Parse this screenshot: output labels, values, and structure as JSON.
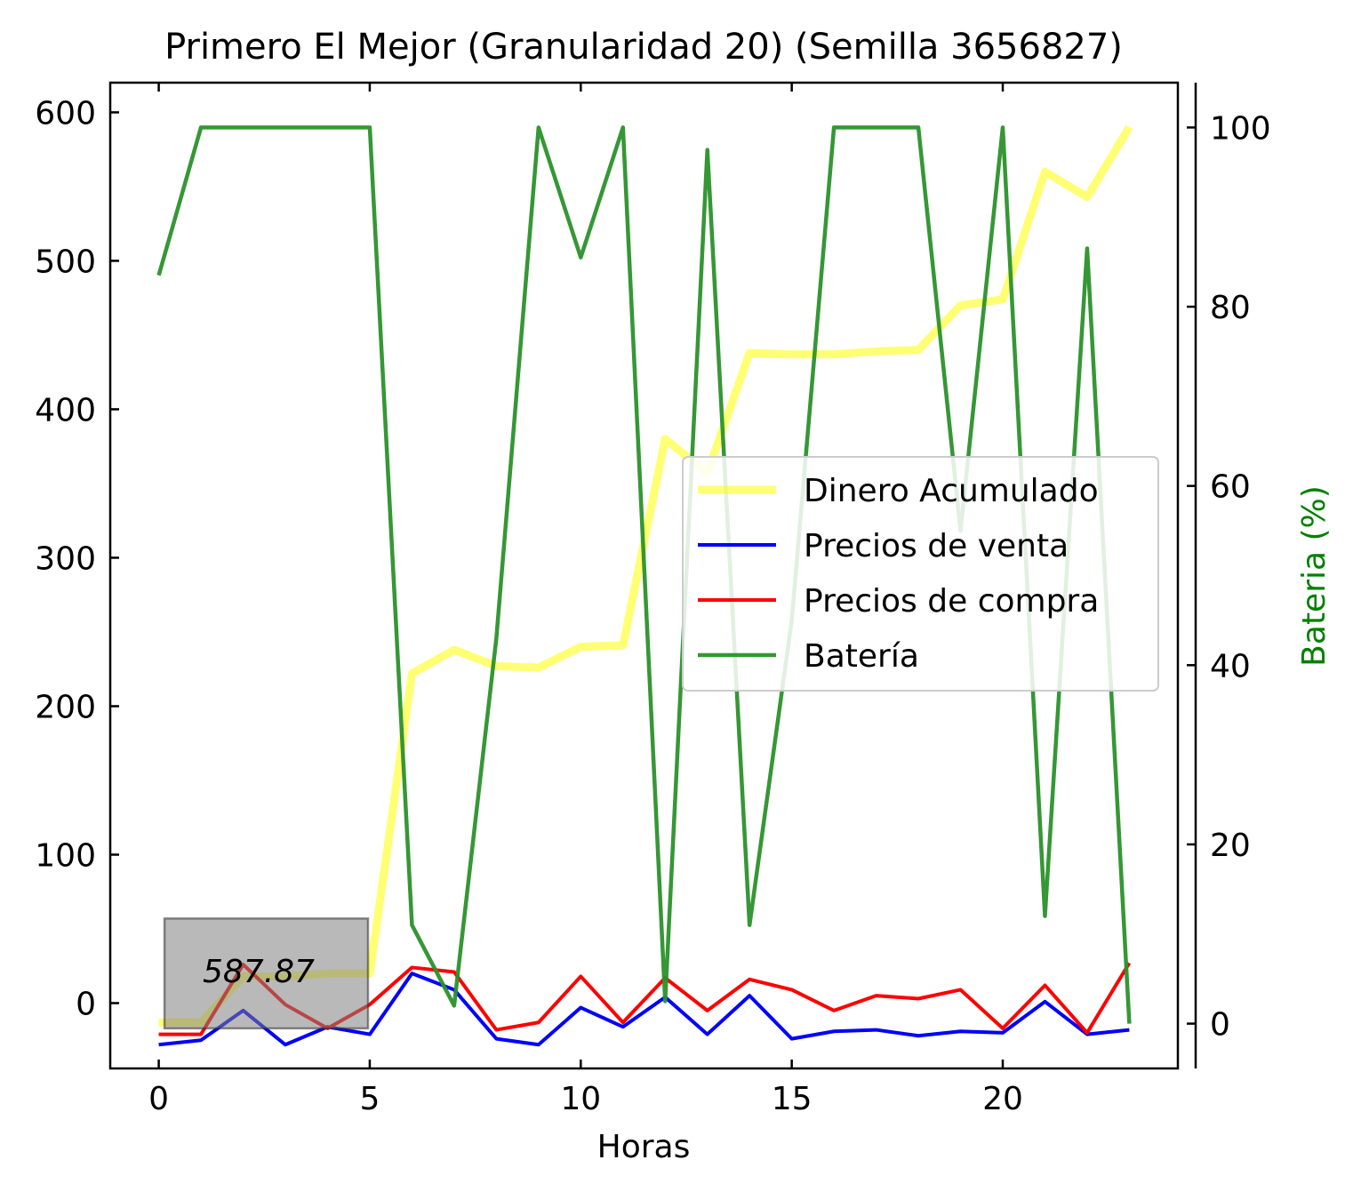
{
  "chart_data": {
    "type": "line",
    "title": "Primero El Mejor (Granularidad 20) (Semilla 3656827)",
    "xlabel": "Horas",
    "ylabel": "",
    "y2label": "Bateria (%)",
    "xlim": [
      -1.15,
      24.15
    ],
    "ylim": [
      -44,
      620
    ],
    "y2lim": [
      -5,
      105
    ],
    "xticks": [
      0,
      5,
      10,
      15,
      20
    ],
    "yticks": [
      0,
      100,
      200,
      300,
      400,
      500,
      600
    ],
    "y2ticks": [
      0,
      20,
      40,
      60,
      80,
      100
    ],
    "legend_position": "center-right",
    "annotation": "587.87",
    "x": [
      0,
      1,
      2,
      3,
      4,
      5,
      6,
      7,
      8,
      9,
      10,
      11,
      12,
      13,
      14,
      15,
      16,
      17,
      18,
      19,
      20,
      21,
      22,
      23
    ],
    "series": [
      {
        "name": "Dinero Acumulado",
        "color": "#ffff00",
        "axis": "left",
        "values": [
          -13,
          -13,
          18,
          18,
          20,
          20,
          222,
          238,
          227,
          226,
          240,
          241,
          380,
          357,
          438,
          437,
          437,
          439,
          440,
          470,
          474,
          560,
          543,
          590
        ]
      },
      {
        "name": "Precios de venta",
        "color": "#0000ff",
        "axis": "left",
        "values": [
          -28,
          -25,
          -5,
          -28,
          -16,
          -21,
          20,
          9,
          -24,
          -28,
          -3,
          -16,
          4,
          -21,
          5,
          -24,
          -19,
          -18,
          -22,
          -19,
          -20,
          1,
          -21,
          -18
        ]
      },
      {
        "name": "Precios de compra",
        "color": "#ff0000",
        "axis": "left",
        "values": [
          -21,
          -21,
          26,
          -1,
          -17,
          -1,
          24,
          21,
          -18,
          -13,
          18,
          -13,
          17,
          -5,
          16,
          9,
          -5,
          5,
          3,
          9,
          -17,
          12,
          -20,
          27
        ]
      },
      {
        "name": "Batería",
        "color": "#2a912a",
        "axis": "right",
        "values": [
          83.5,
          100,
          100,
          100,
          100,
          100,
          11,
          2,
          43,
          100,
          85.5,
          100,
          2.5,
          97.5,
          11,
          45,
          100,
          100,
          100,
          55,
          100,
          12,
          86.5,
          0
        ]
      }
    ]
  }
}
